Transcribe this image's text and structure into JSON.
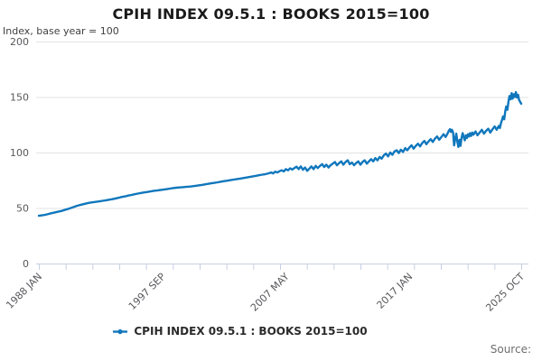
{
  "header": {
    "title": "CPIH INDEX 09.5.1 : BOOKS 2015=100",
    "subtitle": "Index, base year = 100"
  },
  "legend": {
    "label": "CPIH INDEX 09.5.1 : BOOKS 2015=100"
  },
  "footer": {
    "source_label": "Source:"
  },
  "colors": {
    "line": "#1077bc",
    "grid": "#e3e3e3",
    "axis": "#c7d0e2",
    "axis_label": "#58585c",
    "title": "#1a1a1a",
    "subtitle": "#414042",
    "legend_text": "#2b2b2b",
    "source": "#6e6e6e",
    "background": "#ffffff"
  },
  "chart_data": {
    "type": "line",
    "title": "CPIH INDEX 09.5.1 : BOOKS 2015=100",
    "subtitle": "Index, base year = 100",
    "grid": "horizontal",
    "legend_position": "bottom-center",
    "y_axis": {
      "ticks": [
        0,
        50,
        100,
        150,
        200
      ],
      "range": [
        0,
        200
      ]
    },
    "x_axis": {
      "labels": [
        "1988 JAN",
        "1997 SEP",
        "2007 MAY",
        "2017 JAN",
        "2025 OCT"
      ],
      "label_months": [
        0,
        116,
        232,
        348,
        453
      ],
      "total_months": 453,
      "start_year": 1988,
      "end_year_decimal": 2025.75,
      "minor_tick_count": 19,
      "label_rotation_deg": -45
    },
    "series": [
      {
        "name": "CPIH INDEX 09.5.1 : BOOKS 2015=100",
        "color": "#1077bc",
        "points": [
          [
            1988.0,
            43.0
          ],
          [
            1988.25,
            43.4
          ],
          [
            1988.5,
            43.9
          ],
          [
            1988.75,
            44.6
          ],
          [
            1989.0,
            45.4
          ],
          [
            1989.25,
            46.0
          ],
          [
            1989.5,
            46.7
          ],
          [
            1989.75,
            47.3
          ],
          [
            1990.0,
            48.2
          ],
          [
            1990.25,
            49.0
          ],
          [
            1990.5,
            50.0
          ],
          [
            1990.75,
            51.0
          ],
          [
            1991.0,
            52.0
          ],
          [
            1991.25,
            52.8
          ],
          [
            1991.5,
            53.5
          ],
          [
            1991.75,
            54.2
          ],
          [
            1992.0,
            54.8
          ],
          [
            1992.25,
            55.2
          ],
          [
            1992.5,
            55.6
          ],
          [
            1992.75,
            56.0
          ],
          [
            1993.0,
            56.5
          ],
          [
            1993.25,
            57.0
          ],
          [
            1993.5,
            57.5
          ],
          [
            1993.75,
            58.0
          ],
          [
            1994.0,
            58.6
          ],
          [
            1994.25,
            59.3
          ],
          [
            1994.5,
            60.0
          ],
          [
            1994.75,
            60.5
          ],
          [
            1995.0,
            61.2
          ],
          [
            1995.25,
            61.8
          ],
          [
            1995.5,
            62.4
          ],
          [
            1995.75,
            63.0
          ],
          [
            1996.0,
            63.6
          ],
          [
            1996.25,
            64.1
          ],
          [
            1996.5,
            64.5
          ],
          [
            1996.75,
            65.0
          ],
          [
            1997.0,
            65.5
          ],
          [
            1997.25,
            65.8
          ],
          [
            1997.5,
            66.2
          ],
          [
            1997.75,
            66.6
          ],
          [
            1998.0,
            67.0
          ],
          [
            1998.25,
            67.5
          ],
          [
            1998.5,
            68.0
          ],
          [
            1998.75,
            68.3
          ],
          [
            1999.0,
            68.5
          ],
          [
            1999.25,
            68.8
          ],
          [
            1999.5,
            69.0
          ],
          [
            1999.75,
            69.3
          ],
          [
            2000.0,
            69.6
          ],
          [
            2000.25,
            70.0
          ],
          [
            2000.5,
            70.4
          ],
          [
            2000.75,
            70.8
          ],
          [
            2001.0,
            71.3
          ],
          [
            2001.25,
            71.8
          ],
          [
            2001.5,
            72.3
          ],
          [
            2001.75,
            72.7
          ],
          [
            2002.0,
            73.2
          ],
          [
            2002.25,
            73.7
          ],
          [
            2002.5,
            74.2
          ],
          [
            2002.75,
            74.6
          ],
          [
            2003.0,
            75.1
          ],
          [
            2003.25,
            75.6
          ],
          [
            2003.5,
            76.1
          ],
          [
            2003.75,
            76.5
          ],
          [
            2004.0,
            77.0
          ],
          [
            2004.25,
            77.5
          ],
          [
            2004.5,
            78.0
          ],
          [
            2004.75,
            78.5
          ],
          [
            2005.0,
            79.0
          ],
          [
            2005.25,
            79.6
          ],
          [
            2005.5,
            80.1
          ],
          [
            2005.75,
            80.6
          ],
          [
            2006.0,
            81.3
          ],
          [
            2006.17,
            82.0
          ],
          [
            2006.33,
            81.2
          ],
          [
            2006.5,
            82.8
          ],
          [
            2006.67,
            82.0
          ],
          [
            2006.83,
            83.2
          ],
          [
            2007.0,
            84.0
          ],
          [
            2007.17,
            83.0
          ],
          [
            2007.33,
            85.0
          ],
          [
            2007.5,
            84.0
          ],
          [
            2007.67,
            85.8
          ],
          [
            2007.83,
            84.6
          ],
          [
            2008.0,
            86.0
          ],
          [
            2008.17,
            87.2
          ],
          [
            2008.33,
            85.0
          ],
          [
            2008.5,
            87.5
          ],
          [
            2008.67,
            84.5
          ],
          [
            2008.83,
            86.5
          ],
          [
            2009.0,
            83.5
          ],
          [
            2009.17,
            85.5
          ],
          [
            2009.33,
            87.5
          ],
          [
            2009.5,
            85.0
          ],
          [
            2009.67,
            88.0
          ],
          [
            2009.83,
            86.0
          ],
          [
            2010.0,
            88.0
          ],
          [
            2010.17,
            89.5
          ],
          [
            2010.33,
            87.0
          ],
          [
            2010.5,
            89.0
          ],
          [
            2010.67,
            86.5
          ],
          [
            2010.83,
            88.5
          ],
          [
            2011.0,
            90.0
          ],
          [
            2011.17,
            91.5
          ],
          [
            2011.33,
            88.5
          ],
          [
            2011.5,
            90.5
          ],
          [
            2011.67,
            92.0
          ],
          [
            2011.83,
            89.0
          ],
          [
            2012.0,
            91.5
          ],
          [
            2012.17,
            93.0
          ],
          [
            2012.33,
            89.5
          ],
          [
            2012.5,
            91.0
          ],
          [
            2012.67,
            88.5
          ],
          [
            2012.83,
            90.5
          ],
          [
            2013.0,
            92.0
          ],
          [
            2013.17,
            89.0
          ],
          [
            2013.33,
            91.5
          ],
          [
            2013.5,
            93.0
          ],
          [
            2013.67,
            90.0
          ],
          [
            2013.83,
            92.0
          ],
          [
            2014.0,
            94.0
          ],
          [
            2014.17,
            92.0
          ],
          [
            2014.33,
            95.0
          ],
          [
            2014.5,
            93.0
          ],
          [
            2014.67,
            96.0
          ],
          [
            2014.83,
            94.5
          ],
          [
            2015.0,
            97.5
          ],
          [
            2015.17,
            99.0
          ],
          [
            2015.33,
            96.5
          ],
          [
            2015.5,
            100.0
          ],
          [
            2015.67,
            98.0
          ],
          [
            2015.83,
            101.0
          ],
          [
            2016.0,
            102.0
          ],
          [
            2016.17,
            99.5
          ],
          [
            2016.33,
            102.5
          ],
          [
            2016.5,
            100.5
          ],
          [
            2016.67,
            104.0
          ],
          [
            2016.83,
            102.0
          ],
          [
            2017.0,
            104.5
          ],
          [
            2017.17,
            106.5
          ],
          [
            2017.33,
            103.5
          ],
          [
            2017.5,
            106.0
          ],
          [
            2017.67,
            108.0
          ],
          [
            2017.83,
            105.5
          ],
          [
            2018.0,
            108.5
          ],
          [
            2018.17,
            110.5
          ],
          [
            2018.33,
            107.5
          ],
          [
            2018.5,
            110.0
          ],
          [
            2018.67,
            112.0
          ],
          [
            2018.83,
            109.5
          ],
          [
            2019.0,
            112.5
          ],
          [
            2019.17,
            114.5
          ],
          [
            2019.33,
            111.5
          ],
          [
            2019.5,
            114.0
          ],
          [
            2019.67,
            116.5
          ],
          [
            2019.83,
            114.0
          ],
          [
            2020.0,
            117.5
          ],
          [
            2020.08,
            119.5
          ],
          [
            2020.17,
            121.0
          ],
          [
            2020.25,
            118.5
          ],
          [
            2020.33,
            120.5
          ],
          [
            2020.42,
            118.0
          ],
          [
            2020.5,
            106.5
          ],
          [
            2020.58,
            112.0
          ],
          [
            2020.67,
            117.0
          ],
          [
            2020.75,
            110.0
          ],
          [
            2020.83,
            105.0
          ],
          [
            2020.92,
            111.5
          ],
          [
            2021.0,
            106.0
          ],
          [
            2021.08,
            113.0
          ],
          [
            2021.17,
            117.5
          ],
          [
            2021.25,
            114.0
          ],
          [
            2021.33,
            111.0
          ],
          [
            2021.42,
            115.5
          ],
          [
            2021.5,
            113.0
          ],
          [
            2021.58,
            116.5
          ],
          [
            2021.67,
            114.5
          ],
          [
            2021.75,
            117.5
          ],
          [
            2021.83,
            115.0
          ],
          [
            2021.92,
            118.0
          ],
          [
            2022.0,
            116.0
          ],
          [
            2022.17,
            119.0
          ],
          [
            2022.33,
            115.5
          ],
          [
            2022.5,
            118.0
          ],
          [
            2022.67,
            120.5
          ],
          [
            2022.83,
            117.0
          ],
          [
            2023.0,
            119.5
          ],
          [
            2023.17,
            121.5
          ],
          [
            2023.33,
            118.0
          ],
          [
            2023.5,
            121.0
          ],
          [
            2023.67,
            123.5
          ],
          [
            2023.83,
            120.5
          ],
          [
            2024.0,
            124.0
          ],
          [
            2024.08,
            122.0
          ],
          [
            2024.17,
            126.5
          ],
          [
            2024.25,
            129.5
          ],
          [
            2024.33,
            132.5
          ],
          [
            2024.42,
            130.0
          ],
          [
            2024.5,
            137.0
          ],
          [
            2024.58,
            141.5
          ],
          [
            2024.67,
            138.5
          ],
          [
            2024.75,
            146.0
          ],
          [
            2024.83,
            151.0
          ],
          [
            2024.92,
            148.0
          ],
          [
            2025.0,
            153.5
          ],
          [
            2025.08,
            148.5
          ],
          [
            2025.17,
            152.5
          ],
          [
            2025.25,
            150.0
          ],
          [
            2025.33,
            154.5
          ],
          [
            2025.42,
            149.5
          ],
          [
            2025.5,
            152.0
          ],
          [
            2025.58,
            147.5
          ],
          [
            2025.67,
            145.5
          ],
          [
            2025.75,
            144.0
          ]
        ]
      }
    ]
  }
}
